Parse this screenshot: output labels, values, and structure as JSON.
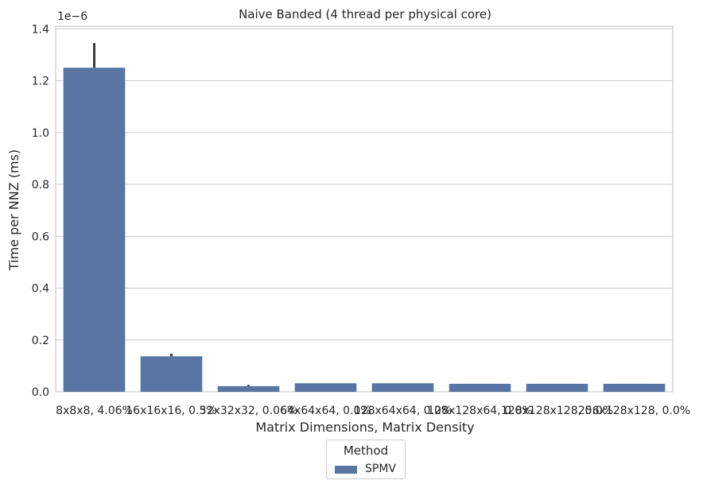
{
  "chart_data": {
    "type": "bar",
    "title": "Naive Banded (4 thread per physical core)",
    "xlabel": "Matrix Dimensions, Matrix Density",
    "ylabel": "Time per NNZ (ms)",
    "y_offset_label": "1e−6",
    "y_scale": 1e-06,
    "ylim": [
      0,
      1.41
    ],
    "yticks": [
      0.0,
      0.2,
      0.4,
      0.6,
      0.8,
      1.0,
      1.2,
      1.4
    ],
    "ytick_labels": [
      "0.0",
      "0.2",
      "0.4",
      "0.6",
      "0.8",
      "1.0",
      "1.2",
      "1.4"
    ],
    "categories": [
      "8x8x8, 4.06%",
      "16x16x16, 0.5%",
      "32x32x32, 0.06%",
      "64x64x64, 0.0%",
      "128x64x64, 0.0%",
      "128x128x64, 0.0%",
      "128x128x128, 0.0%",
      "256x128x128, 0.0%"
    ],
    "series": [
      {
        "name": "SPMV",
        "values": [
          1.25,
          0.137,
          0.022,
          0.033,
          0.033,
          0.031,
          0.031,
          0.031
        ],
        "error_high": [
          1.345,
          0.147,
          0.027,
          0.033,
          0.033,
          0.031,
          0.031,
          0.031
        ],
        "color": "#5875a4"
      }
    ],
    "grid": true,
    "legend": {
      "title": "Method",
      "placement": "bottom-center, outside plot"
    }
  }
}
